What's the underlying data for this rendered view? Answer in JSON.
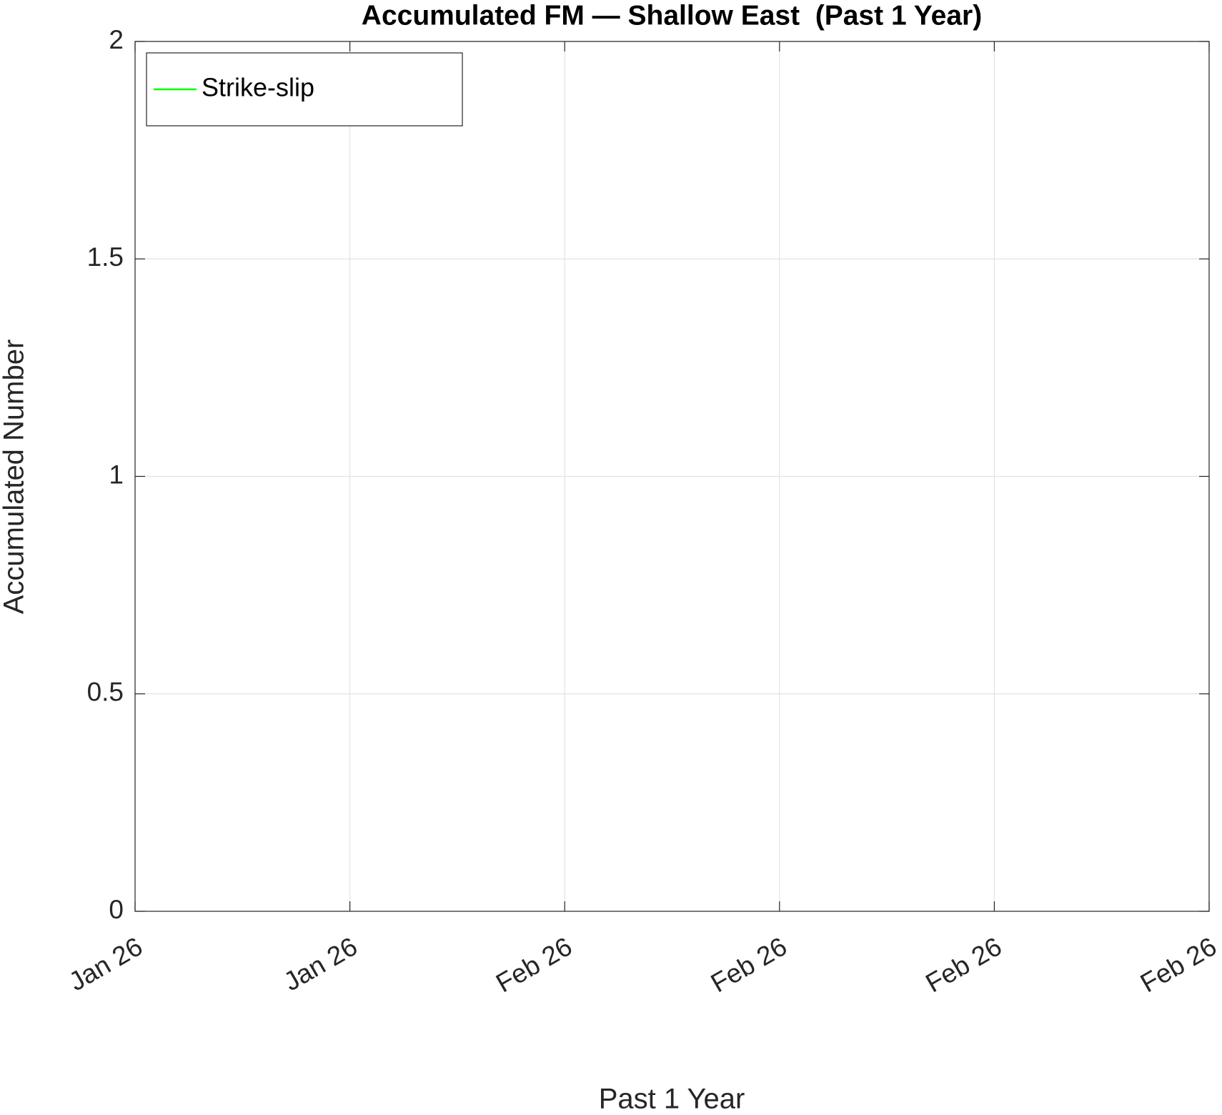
{
  "chart_data": {
    "type": "line",
    "title": "Accumulated FM — Shallow East  (Past 1 Year)",
    "xlabel": "Past 1 Year",
    "ylabel": "Accumulated Number",
    "categories": [
      "Jan 26",
      "Jan 26",
      "Feb 26",
      "Feb 26",
      "Feb 26",
      "Feb 26"
    ],
    "series": [
      {
        "name": "Strike-slip",
        "color": "#00ff00",
        "values": [
          null,
          null,
          null,
          null,
          null,
          null
        ]
      }
    ],
    "ylim": [
      0,
      2
    ],
    "yticks": [
      0,
      0.5,
      1,
      1.5,
      2
    ],
    "grid": true,
    "legend": "upper left"
  }
}
